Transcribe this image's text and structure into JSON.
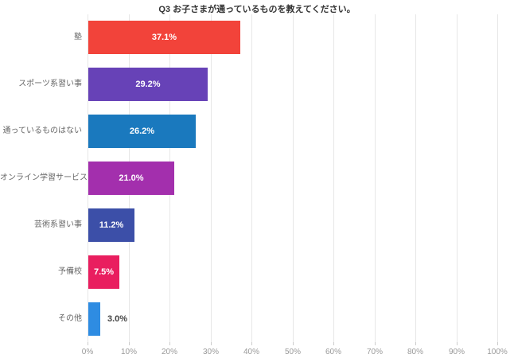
{
  "chart_data": {
    "type": "bar",
    "orientation": "horizontal",
    "title": "Q3 お子さまが通っているものを教えてください。",
    "categories": [
      "塾",
      "スポーツ系習い事",
      "通っているものはない",
      "オンライン学習サービス",
      "芸術系習い事",
      "予備校",
      "その他"
    ],
    "values": [
      37.1,
      29.2,
      26.2,
      21.0,
      11.2,
      7.5,
      3.0
    ],
    "value_labels": [
      "37.1%",
      "29.2%",
      "26.2%",
      "21.0%",
      "11.2%",
      "7.5%",
      "3.0%"
    ],
    "bar_colors": [
      "#f2433a",
      "#6742b7",
      "#1a79be",
      "#a32fad",
      "#3c4fa8",
      "#e91e5f",
      "#2e8ce2"
    ],
    "xlabel": "",
    "ylabel": "",
    "xlim": [
      0,
      100
    ],
    "x_tick_values": [
      0,
      10,
      20,
      30,
      40,
      50,
      60,
      70,
      80,
      90,
      100
    ],
    "x_tick_labels": [
      "0%",
      "10%",
      "20%",
      "30%",
      "40%",
      "50%",
      "60%",
      "70%",
      "80%",
      "90%",
      "100%"
    ],
    "grid": "vertical",
    "legend": "none",
    "colors": {
      "background": "#ffffff",
      "title_text": "#333333",
      "category_text": "#666666",
      "tick_text": "#999999",
      "value_text_inside": "#ffffff",
      "value_text_outside": "#444444",
      "gridline": "#e7e7e7"
    }
  }
}
